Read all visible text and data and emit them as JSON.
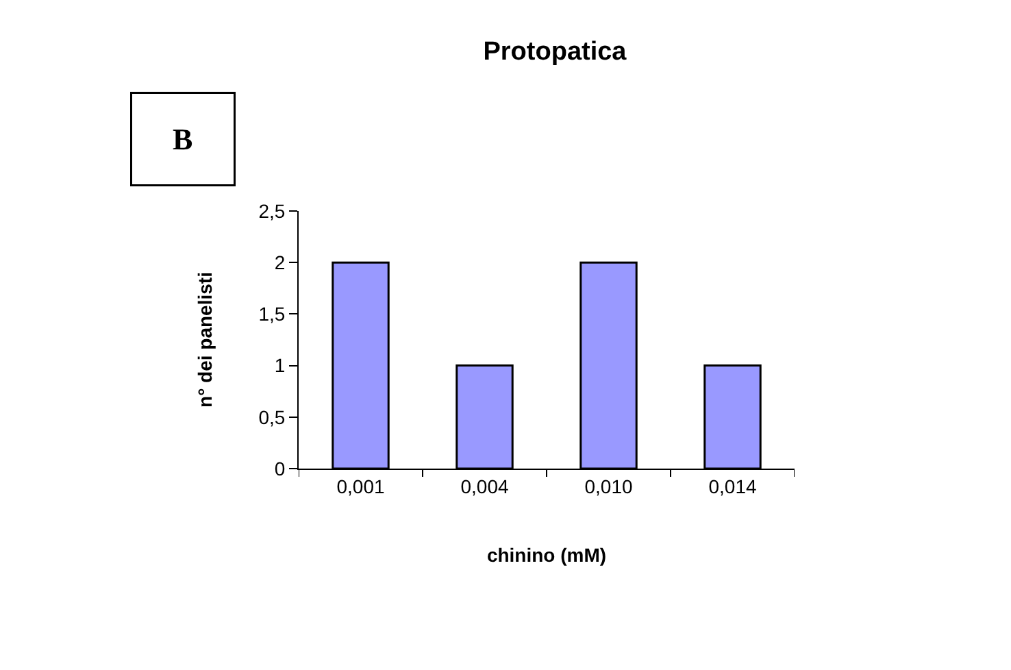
{
  "chart_data": {
    "type": "bar",
    "title": "Protopatica",
    "xlabel": "chinino (mM)",
    "ylabel": "n° dei panelisti",
    "annotations": [
      "B"
    ],
    "categories": [
      "0,001",
      "0,004",
      "0,010",
      "0,014"
    ],
    "values": [
      2,
      1,
      2,
      1
    ],
    "color": "#9999ff",
    "ylim": [
      0,
      2.5
    ],
    "yticks": [
      {
        "value": 0,
        "label": "0"
      },
      {
        "value": 0.5,
        "label": "0,5"
      },
      {
        "value": 1,
        "label": "1"
      },
      {
        "value": 1.5,
        "label": "1,5"
      },
      {
        "value": 2,
        "label": "2"
      },
      {
        "value": 2.5,
        "label": "2,5"
      }
    ]
  }
}
